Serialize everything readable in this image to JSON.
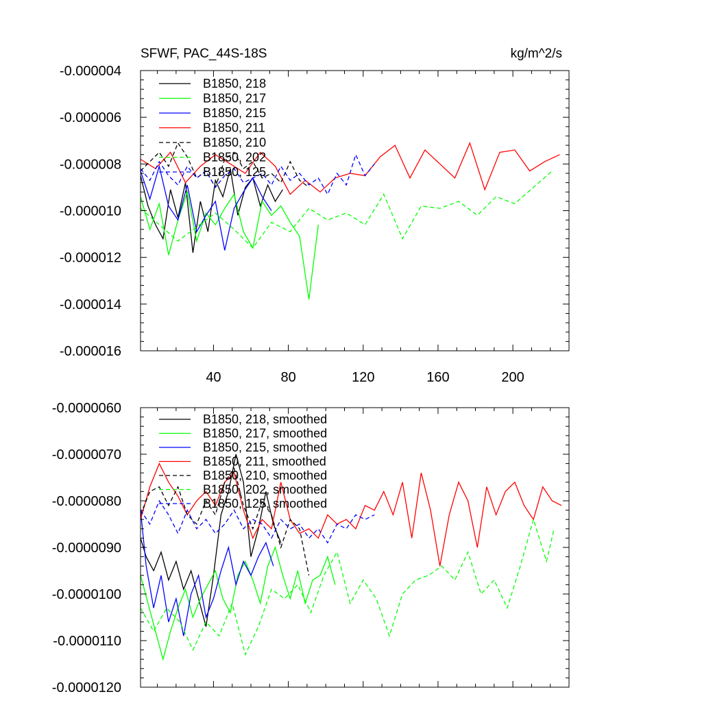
{
  "chart_data": [
    {
      "type": "line",
      "title": "SFWF, PAC_44S-18S",
      "units_label": "kg/m^2/s",
      "xlim": [
        1,
        230
      ],
      "ylim": [
        -1.6e-05,
        -4e-06
      ],
      "x_ticks": [
        40,
        80,
        120,
        160,
        200
      ],
      "x_tick_labels": [
        "40",
        "80",
        "120",
        "160",
        "200"
      ],
      "y_ticks": [
        -1.6e-05,
        -1.4e-05,
        -1.2e-05,
        -1e-05,
        -8e-06,
        -6e-06,
        -4e-06
      ],
      "y_tick_labels": [
        "-0.000016",
        "-0.000014",
        "-0.000012",
        "-0.000010",
        "-0.000008",
        "-0.000006",
        "-0.000004"
      ],
      "series": [
        {
          "name": "B1850, 218",
          "color": "#000000",
          "dash": "solid",
          "x": [
            1,
            5,
            9,
            13,
            17,
            21,
            25,
            29,
            33,
            37,
            41,
            45,
            49,
            53,
            57,
            61,
            65,
            69,
            73,
            77
          ],
          "values": [
            -8.5e-06,
            -9.8e-06,
            -1.06e-05,
            -1.12e-05,
            -9.1e-06,
            -1.03e-05,
            -8.8e-06,
            -1.18e-05,
            -9.6e-06,
            -1.09e-05,
            -8.7e-06,
            -9.4e-06,
            -8.2e-06,
            -1.02e-05,
            -9e-06,
            -8.6e-06,
            -9.8e-06,
            -8.9e-06,
            -9.6e-06,
            -9.1e-06
          ]
        },
        {
          "name": "B1850, 217",
          "color": "#00ff00",
          "dash": "solid",
          "x": [
            1,
            6,
            11,
            16,
            21,
            26,
            31,
            36,
            41,
            46,
            51,
            56,
            61,
            66,
            71,
            76,
            81,
            86,
            91,
            96
          ],
          "values": [
            -9.4e-06,
            -1.08e-05,
            -9.7e-06,
            -1.19e-05,
            -1.04e-05,
            -9.2e-06,
            -1.13e-05,
            -1.01e-05,
            -1.06e-05,
            -9.9e-06,
            -9.3e-06,
            -1.09e-05,
            -1.16e-05,
            -9.6e-06,
            -1.02e-05,
            -9.8e-06,
            -1.05e-05,
            -1.11e-05,
            -1.38e-05,
            -1.06e-05
          ]
        },
        {
          "name": "B1850, 215",
          "color": "#0000ff",
          "dash": "solid",
          "x": [
            1,
            6,
            11,
            16,
            21,
            26,
            31,
            36,
            41,
            46,
            51,
            56,
            61,
            66,
            71
          ],
          "values": [
            -8.3e-06,
            -9.5e-06,
            -8.1e-06,
            -9.8e-06,
            -1.04e-05,
            -8.9e-06,
            -1.09e-05,
            -1.02e-05,
            -9.6e-06,
            -1.17e-05,
            -9.9e-06,
            -9.2e-06,
            -8.6e-06,
            -9.4e-06,
            -1e-05
          ]
        },
        {
          "name": "B1850, 211",
          "color": "#ff0000",
          "dash": "solid",
          "x": [
            1,
            9,
            17,
            25,
            33,
            41,
            49,
            57,
            65,
            73,
            81,
            89,
            97,
            105,
            113,
            121,
            129,
            137,
            145,
            153,
            161,
            169,
            177,
            185,
            193,
            201,
            209,
            217,
            225
          ],
          "values": [
            -7.8e-06,
            -8.2e-06,
            -7.5e-06,
            -8.8e-06,
            -8.1e-06,
            -7.6e-06,
            -8e-06,
            -8.4e-06,
            -7.5e-06,
            -8.1e-06,
            -9.3e-06,
            -8.7e-06,
            -9.2e-06,
            -8.6e-06,
            -8.4e-06,
            -8.5e-06,
            -7.7e-06,
            -7.2e-06,
            -8.6e-06,
            -7.4e-06,
            -8e-06,
            -8.6e-06,
            -7.1e-06,
            -9.1e-06,
            -7.5e-06,
            -7.4e-06,
            -8.3e-06,
            -7.9e-06,
            -7.6e-06
          ]
        },
        {
          "name": "B1850, 210",
          "color": "#000000",
          "dash": "dashed",
          "x": [
            1,
            6,
            11,
            16,
            21,
            26,
            31,
            36,
            41,
            46,
            51,
            56,
            61,
            66,
            71,
            76,
            81,
            86,
            91
          ],
          "values": [
            -8.3e-06,
            -7.9e-06,
            -7.5e-06,
            -8.1e-06,
            -7.1e-06,
            -7.7e-06,
            -8.6e-06,
            -8.3e-06,
            -9e-06,
            -7.8e-06,
            -7.5e-06,
            -8.2e-06,
            -7.9e-06,
            -8.6e-06,
            -8.4e-06,
            -8.8e-06,
            -7.9e-06,
            -8.7e-06,
            -9e-06
          ]
        },
        {
          "name": "B1850, 202",
          "color": "#00ff00",
          "dash": "dashed",
          "x": [
            1,
            11,
            21,
            31,
            41,
            51,
            61,
            71,
            81,
            91,
            101,
            111,
            121,
            131,
            141,
            151,
            161,
            171,
            181,
            191,
            201,
            211,
            221
          ],
          "values": [
            -9.9e-06,
            -1.06e-05,
            -1.13e-05,
            -1.07e-05,
            -1.01e-05,
            -1.08e-05,
            -1.16e-05,
            -1.05e-05,
            -1.09e-05,
            -9.9e-06,
            -1.04e-05,
            -1.01e-05,
            -1.06e-05,
            -9.3e-06,
            -1.12e-05,
            -9.8e-06,
            -9.9e-06,
            -9.6e-06,
            -1.02e-05,
            -9.4e-06,
            -9.7e-06,
            -9e-06,
            -8.3e-06
          ]
        },
        {
          "name": "B1850, 125",
          "color": "#0000ff",
          "dash": "dashed",
          "x": [
            1,
            6,
            11,
            16,
            21,
            26,
            31,
            36,
            41,
            46,
            51,
            56,
            61,
            66,
            71,
            76,
            81,
            86,
            91,
            96,
            101,
            106,
            111,
            116,
            121,
            126
          ],
          "values": [
            -8.2e-06,
            -8.7e-06,
            -7.9e-06,
            -8.5e-06,
            -8.9e-06,
            -8.1e-06,
            -8.6e-06,
            -8.3e-06,
            -9e-06,
            -8.5e-06,
            -8.2e-06,
            -8.8e-06,
            -8.6e-06,
            -8.4e-06,
            -8.9e-06,
            -8.1e-06,
            -8.7e-06,
            -8.4e-06,
            -8.9e-06,
            -8.6e-06,
            -9.3e-06,
            -8.4e-06,
            -8.9e-06,
            -7.6e-06,
            -8.5e-06,
            -8e-06
          ]
        }
      ]
    },
    {
      "type": "line",
      "xlim": [
        1,
        230
      ],
      "ylim": [
        -1.2e-05,
        -6e-06
      ],
      "x_ticks": [
        40,
        80,
        120,
        160,
        200
      ],
      "y_ticks": [
        -1.2e-05,
        -1.1e-05,
        -1e-05,
        -9e-06,
        -8e-06,
        -7e-06,
        -6e-06
      ],
      "y_tick_labels": [
        "-0.0000120",
        "-0.0000110",
        "-0.0000100",
        "-0.0000090",
        "-0.0000080",
        "-0.0000070",
        "-0.0000060"
      ],
      "series": [
        {
          "name": "B1850, 218, smoothed",
          "color": "#000000",
          "dash": "solid",
          "x": [
            1,
            4,
            8,
            12,
            16,
            20,
            24,
            28,
            32,
            36,
            40,
            44,
            48,
            52,
            56,
            60,
            64,
            68,
            72,
            76
          ],
          "values": [
            -8.8e-06,
            -9.2e-06,
            -9.5e-06,
            -9.1e-06,
            -9.7e-06,
            -9.3e-06,
            -9.9e-06,
            -9.5e-06,
            -1.01e-05,
            -1.07e-05,
            -9.6e-06,
            -8.3e-06,
            -7.8e-06,
            -7e-06,
            -7.6e-06,
            -9.2e-06,
            -8.6e-06,
            -7.8e-06,
            -8.5e-06,
            -8.9e-06
          ]
        },
        {
          "name": "B1850, 217, smoothed",
          "color": "#00ff00",
          "dash": "solid",
          "x": [
            1,
            5,
            9,
            13,
            17,
            21,
            25,
            29,
            33,
            37,
            41,
            45,
            49,
            53,
            57,
            61,
            65,
            69,
            73,
            77,
            81,
            85,
            89,
            93,
            97,
            101,
            105
          ],
          "values": [
            -9.6e-06,
            -1.02e-05,
            -1.08e-05,
            -1.14e-05,
            -1.08e-05,
            -1.03e-05,
            -9.9e-06,
            -1.05e-05,
            -1.01e-05,
            -9.8e-06,
            -9.5e-06,
            -1.01e-05,
            -1.04e-05,
            -9.6e-06,
            -9.3e-06,
            -9.7e-06,
            -1.02e-05,
            -9.4e-06,
            -9e-06,
            -9.6e-06,
            -1.01e-05,
            -9.5e-06,
            -1.02e-05,
            -9.7e-06,
            -9.6e-06,
            -9.2e-06,
            -9.8e-06
          ]
        },
        {
          "name": "B1850, 215, smoothed",
          "color": "#0000ff",
          "dash": "solid",
          "x": [
            1,
            4,
            8,
            12,
            16,
            20,
            24,
            28,
            32,
            36,
            40,
            44,
            48,
            52,
            56,
            60,
            64,
            68,
            72
          ],
          "values": [
            -8.2e-06,
            -9.4e-06,
            -1.03e-05,
            -9.6e-06,
            -1.06e-05,
            -1.01e-05,
            -1.09e-05,
            -1e-05,
            -9.6e-06,
            -1.05e-05,
            -1.01e-05,
            -9.5e-06,
            -9e-06,
            -9.8e-06,
            -9.3e-06,
            -9.6e-06,
            -9.2e-06,
            -8.9e-06,
            -9.4e-06
          ]
        },
        {
          "name": "B1850, 211, smoothed",
          "color": "#ff0000",
          "dash": "solid",
          "x": [
            1,
            6,
            11,
            16,
            21,
            26,
            31,
            36,
            41,
            46,
            51,
            56,
            61,
            66,
            71,
            76,
            81,
            86,
            91,
            96,
            101,
            106,
            111,
            116,
            121,
            126,
            131,
            136,
            141,
            146,
            151,
            156,
            161,
            166,
            171,
            176,
            181,
            186,
            191,
            196,
            201,
            206,
            211,
            216,
            221,
            226
          ],
          "values": [
            -8.4e-06,
            -7.7e-06,
            -7.2e-06,
            -7.6e-06,
            -7.9e-06,
            -8.3e-06,
            -8e-06,
            -7.8e-06,
            -8.1e-06,
            -7.6e-06,
            -7.4e-06,
            -8.2e-06,
            -8.8e-06,
            -8.4e-06,
            -8.6e-06,
            -7.6e-06,
            -8.4e-06,
            -8.7e-06,
            -8.6e-06,
            -8.8e-06,
            -8.3e-06,
            -8.5e-06,
            -8.4e-06,
            -8.6e-06,
            -8.1e-06,
            -8.2e-06,
            -7.8e-06,
            -8.3e-06,
            -7.6e-06,
            -8.8e-06,
            -7.4e-06,
            -8.2e-06,
            -9.4e-06,
            -8.3e-06,
            -7.6e-06,
            -8e-06,
            -9e-06,
            -7.7e-06,
            -8.3e-06,
            -7.8e-06,
            -7.6e-06,
            -8.1e-06,
            -8.4e-06,
            -7.7e-06,
            -8e-06,
            -8.1e-06
          ]
        },
        {
          "name": "B1850, 210, smoothed",
          "color": "#000000",
          "dash": "dashed",
          "x": [
            1,
            6,
            11,
            16,
            21,
            26,
            31,
            36,
            41,
            46,
            51,
            56,
            61,
            66,
            71,
            76,
            81,
            86,
            91
          ],
          "values": [
            -8.3e-06,
            -7.8e-06,
            -7.7e-06,
            -8.1e-06,
            -7.7e-06,
            -8.3e-06,
            -8.5e-06,
            -8e-06,
            -8.3e-06,
            -7.6e-06,
            -7.3e-06,
            -8.1e-06,
            -8.6e-06,
            -8e-06,
            -8.3e-06,
            -9e-06,
            -8.4e-06,
            -8.6e-06,
            -9.6e-06
          ]
        },
        {
          "name": "B1850, 202, smoothed",
          "color": "#00ff00",
          "dash": "dashed",
          "x": [
            1,
            8,
            15,
            22,
            29,
            36,
            43,
            50,
            57,
            64,
            71,
            78,
            85,
            92,
            99,
            106,
            113,
            120,
            127,
            134,
            141,
            148,
            155,
            162,
            169,
            176,
            183,
            190,
            197,
            204,
            211,
            218,
            222
          ],
          "values": [
            -1.03e-05,
            -1.08e-05,
            -1.03e-05,
            -1.06e-05,
            -1.12e-05,
            -1.06e-05,
            -1.09e-05,
            -1.02e-05,
            -1.13e-05,
            -1.07e-05,
            -9.9e-06,
            -1.01e-05,
            -9.8e-06,
            -1.04e-05,
            -9.6e-06,
            -9.1e-06,
            -1.02e-05,
            -9.7e-06,
            -1.01e-05,
            -1.09e-05,
            -1e-05,
            -9.7e-06,
            -9.6e-06,
            -9.4e-06,
            -9.7e-06,
            -9.1e-06,
            -1e-05,
            -9.7e-06,
            -1.03e-05,
            -9.4e-06,
            -8.4e-06,
            -9.3e-06,
            -8.6e-06
          ]
        },
        {
          "name": "B1850, 125, smoothed",
          "color": "#0000ff",
          "dash": "dashed",
          "x": [
            1,
            6,
            11,
            16,
            21,
            26,
            31,
            36,
            41,
            46,
            51,
            56,
            61,
            66,
            71,
            76,
            81,
            86,
            91,
            96,
            101,
            106,
            111,
            116,
            121,
            126
          ],
          "values": [
            -8.2e-06,
            -8.5e-06,
            -8e-06,
            -8.3e-06,
            -8.7e-06,
            -8.2e-06,
            -8.6e-06,
            -8.4e-06,
            -8.7e-06,
            -8.5e-06,
            -8.2e-06,
            -8.6e-06,
            -8.4e-06,
            -8.5e-06,
            -8.8e-06,
            -8.4e-06,
            -8.6e-06,
            -8.5e-06,
            -8.8e-06,
            -8.6e-06,
            -8.9e-06,
            -8.5e-06,
            -8.6e-06,
            -8.3e-06,
            -8.4e-06,
            -8.3e-06
          ]
        }
      ]
    }
  ]
}
